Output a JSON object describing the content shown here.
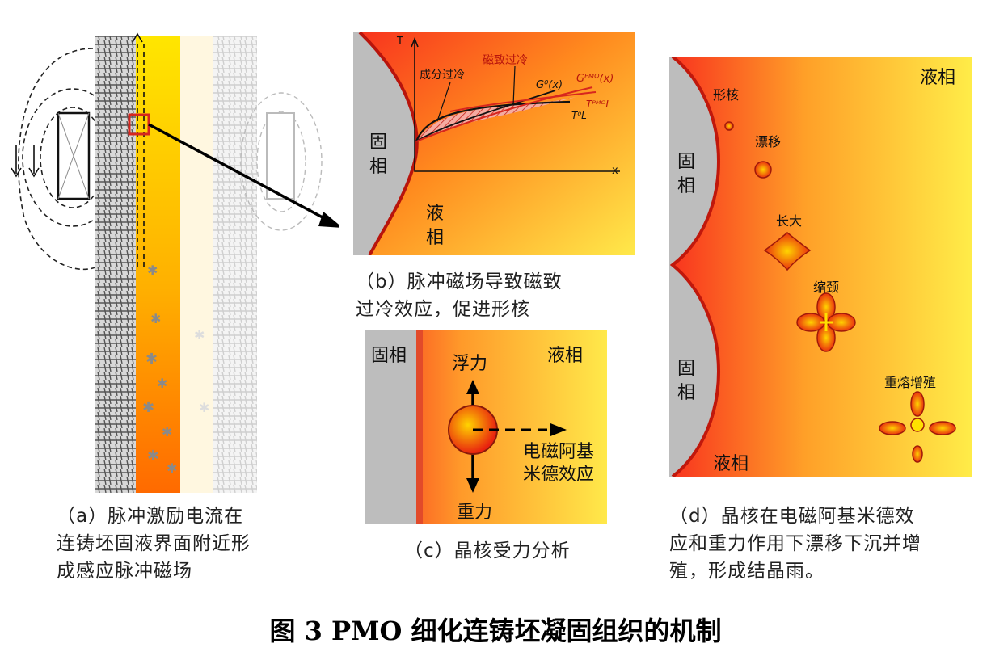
{
  "figure_title": "图  3 PMO 细化连铸坯凝固组织的机制",
  "panel_a": {
    "caption": [
      "（a）脉冲激励电流在",
      "连铸坯固液界面附近形",
      "成感应脉冲磁场"
    ]
  },
  "panel_b": {
    "axis_y": "T",
    "axis_x": "x",
    "label_comp": "成分过冷",
    "label_mag": "磁致过冷",
    "label_g0": "G⁰(x)",
    "label_gpmo": "Gᴾᴹᴼ(x)",
    "label_tl0": "T⁰L",
    "label_tlpmo": "TᴾᴹᴼL",
    "solid": "固\n相",
    "liquid": "液\n相",
    "caption": [
      "（b）脉冲磁场导致磁致",
      "过冷效应，促进形核"
    ],
    "colors": {
      "red": "#d7261e",
      "dark": "#222222"
    }
  },
  "panel_c": {
    "solid": "固相",
    "liquid": "液相",
    "buoyancy": "浮力",
    "gravity": "重力",
    "em_force": [
      "电磁阿基",
      "米德效应"
    ],
    "caption": "（c）晶核受力分析"
  },
  "panel_d": {
    "liquid_top": "液相",
    "solid_top": "固\n相",
    "solid_bottom": "固\n相",
    "liquid_bottom": "液相",
    "stage1": "形核",
    "stage2": "漂移",
    "stage3": "长大",
    "stage4": "缩颈",
    "stage5": "重熔增殖",
    "caption": [
      "（d）晶核在电磁阿基米德效",
      "应和重力作用下漂移下沉并增",
      "殖，形成结晶雨。"
    ]
  }
}
